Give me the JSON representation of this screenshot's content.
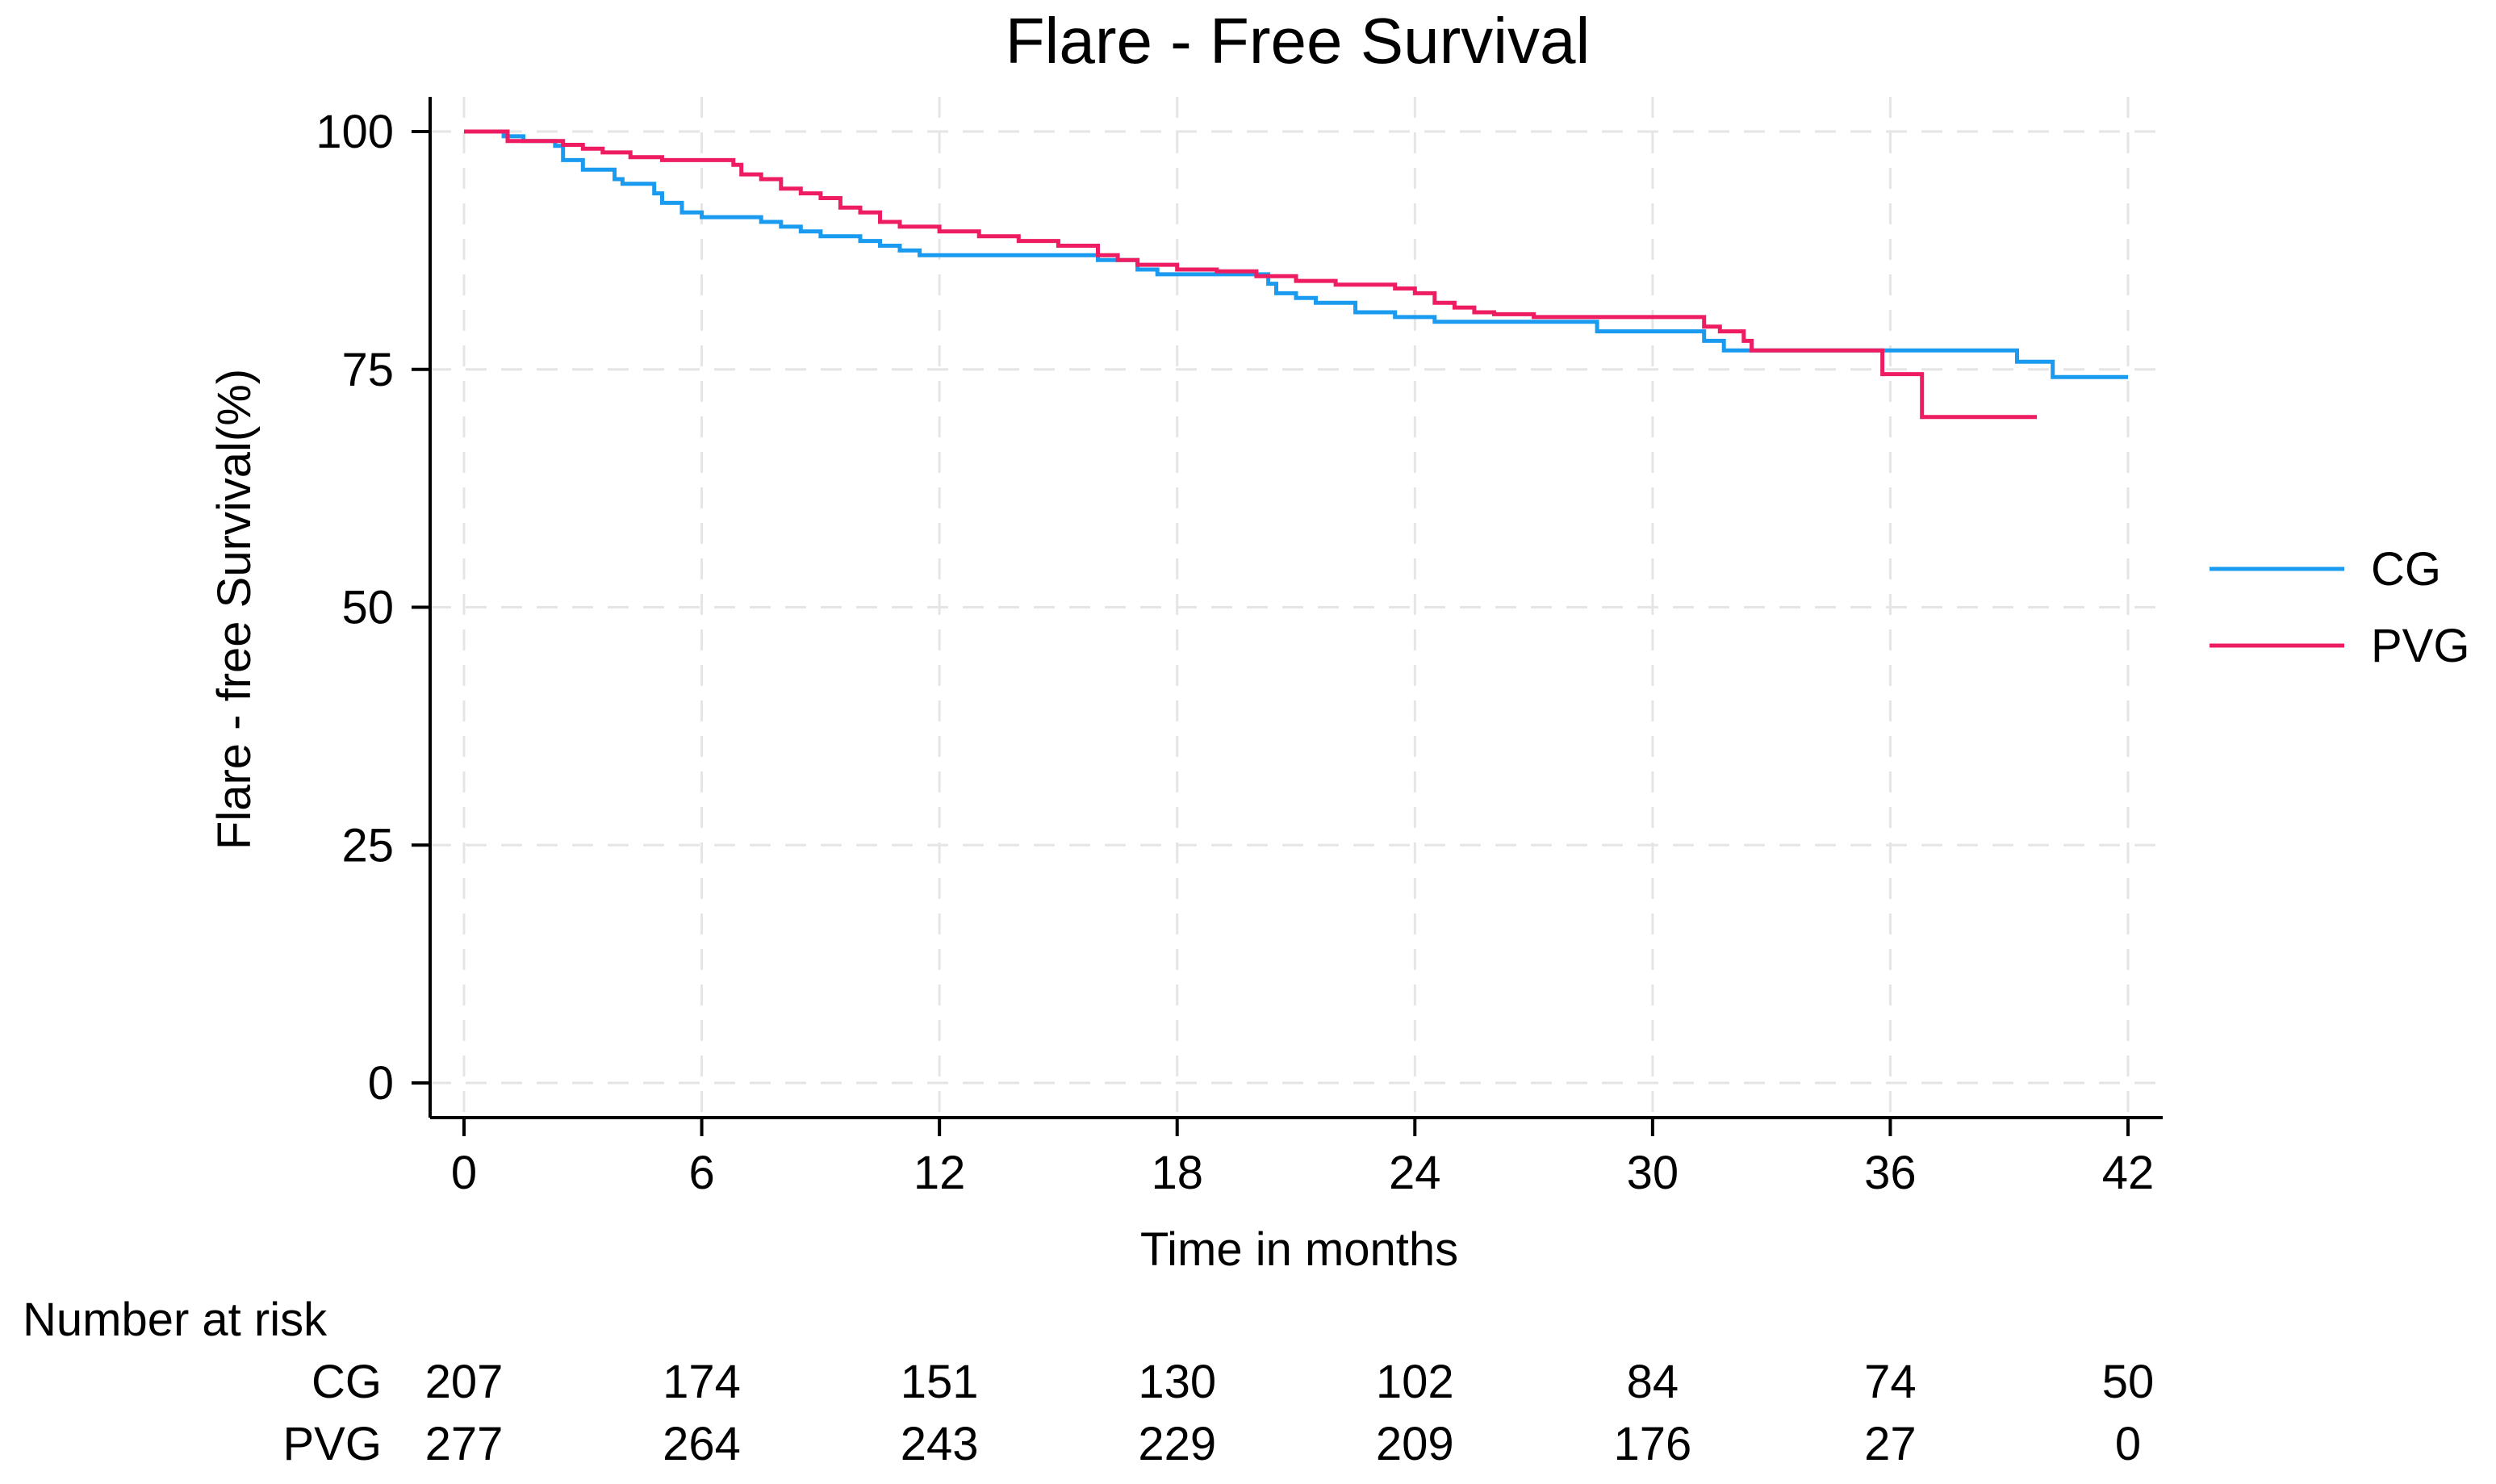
{
  "chart_data": {
    "type": "line",
    "subtype": "kaplan-meier step",
    "title": "Flare - Free Survival",
    "xlabel": "Time in months",
    "ylabel": "Flare - free Survival(%)",
    "xlim": [
      0,
      42
    ],
    "ylim": [
      0,
      100
    ],
    "xticks": [
      0,
      6,
      12,
      18,
      24,
      30,
      36,
      42
    ],
    "yticks": [
      0,
      25,
      50,
      75,
      100
    ],
    "grid": true,
    "legend_position": "right",
    "series": [
      {
        "name": "CG",
        "color": "#1a9bf0",
        "points": [
          [
            0,
            100
          ],
          [
            1,
            99.5
          ],
          [
            1.5,
            99
          ],
          [
            2.3,
            98.5
          ],
          [
            2.5,
            97
          ],
          [
            3,
            96
          ],
          [
            3.8,
            95
          ],
          [
            4,
            94.5
          ],
          [
            4.8,
            93.5
          ],
          [
            5,
            92.5
          ],
          [
            5.5,
            91.5
          ],
          [
            6,
            91
          ],
          [
            7.5,
            90.5
          ],
          [
            8,
            90
          ],
          [
            8.5,
            89.5
          ],
          [
            9,
            89
          ],
          [
            10,
            88.5
          ],
          [
            10.5,
            88
          ],
          [
            11,
            87.5
          ],
          [
            11.5,
            87
          ],
          [
            12,
            87
          ],
          [
            15,
            87
          ],
          [
            16,
            86.5
          ],
          [
            17,
            85.5
          ],
          [
            17.5,
            85
          ],
          [
            20,
            85
          ],
          [
            20.3,
            84
          ],
          [
            20.5,
            83
          ],
          [
            21,
            82.5
          ],
          [
            21.5,
            82
          ],
          [
            22.5,
            81
          ],
          [
            23.5,
            80.5
          ],
          [
            24.5,
            80
          ],
          [
            28.5,
            80
          ],
          [
            28.6,
            79
          ],
          [
            31,
            79
          ],
          [
            31.3,
            78
          ],
          [
            31.8,
            77
          ],
          [
            36,
            77
          ],
          [
            39,
            77
          ],
          [
            39.2,
            75.8
          ],
          [
            40.1,
            75.8
          ],
          [
            40.1,
            74.2
          ],
          [
            42,
            74.2
          ]
        ]
      },
      {
        "name": "PVG",
        "color": "#ee1c61",
        "points": [
          [
            0,
            100
          ],
          [
            1.1,
            100
          ],
          [
            1.1,
            99
          ],
          [
            2.3,
            99
          ],
          [
            2.5,
            98.6
          ],
          [
            3,
            98.2
          ],
          [
            3.5,
            97.8
          ],
          [
            4.2,
            97.3
          ],
          [
            5,
            97
          ],
          [
            6.5,
            97
          ],
          [
            6.8,
            96.5
          ],
          [
            7,
            95.5
          ],
          [
            7.5,
            95
          ],
          [
            8,
            94
          ],
          [
            8.5,
            93.5
          ],
          [
            9,
            93
          ],
          [
            9.5,
            92
          ],
          [
            10,
            91.5
          ],
          [
            10.5,
            90.5
          ],
          [
            11,
            90
          ],
          [
            12,
            89.5
          ],
          [
            13,
            89
          ],
          [
            14,
            88.5
          ],
          [
            15,
            88
          ],
          [
            16,
            87
          ],
          [
            16.5,
            86.5
          ],
          [
            17,
            86
          ],
          [
            18,
            85.5
          ],
          [
            19,
            85.3
          ],
          [
            20,
            84.8
          ],
          [
            21,
            84.3
          ],
          [
            22,
            83.9
          ],
          [
            23.5,
            83.5
          ],
          [
            24,
            83
          ],
          [
            24.5,
            82
          ],
          [
            25,
            81.5
          ],
          [
            25.5,
            81
          ],
          [
            26,
            80.8
          ],
          [
            27,
            80.5
          ],
          [
            31,
            80.5
          ],
          [
            31.3,
            79.5
          ],
          [
            31.7,
            79
          ],
          [
            32.3,
            78
          ],
          [
            32.5,
            77
          ],
          [
            35.8,
            77
          ],
          [
            35.8,
            74.5
          ],
          [
            36.8,
            74.5
          ],
          [
            36.8,
            70
          ],
          [
            39.7,
            70
          ]
        ]
      }
    ],
    "risk_table": {
      "title": "Number at risk",
      "times": [
        0,
        6,
        12,
        18,
        24,
        30,
        36,
        42
      ],
      "rows": [
        {
          "label": "CG",
          "values": [
            "207",
            "174",
            "151",
            "130",
            "102",
            "84",
            "74",
            "50"
          ]
        },
        {
          "label": "PVG",
          "values": [
            "277",
            "264",
            "243",
            "229",
            "209",
            "176",
            "27",
            "0"
          ]
        }
      ]
    }
  }
}
